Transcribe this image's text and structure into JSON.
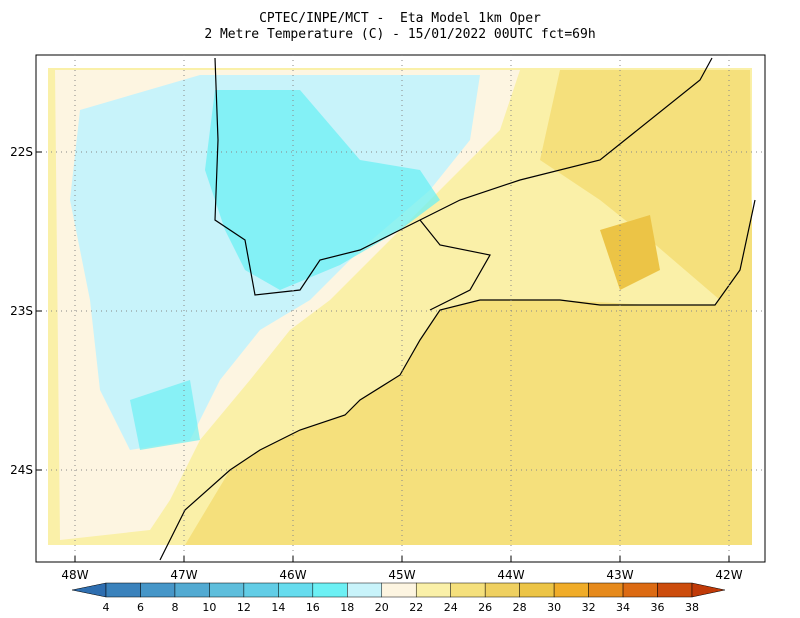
{
  "header": {
    "line1": "CPTEC/INPE/MCT -  Eta Model 1km Oper",
    "line2": "2 Metre Temperature (C) - 15/01/2022 00UTC fct=69h"
  },
  "lat_labels": [
    "22S",
    "23S",
    "24S"
  ],
  "lon_labels": [
    "48W",
    "47W",
    "46W",
    "45W",
    "44W",
    "43W",
    "42W"
  ],
  "colorbar": {
    "levels": [
      4,
      6,
      8,
      10,
      12,
      14,
      16,
      18,
      20,
      22,
      24,
      26,
      28,
      30,
      32,
      34,
      36,
      38
    ],
    "colors": [
      "#2e6eb0",
      "#3a82bc",
      "#4696c8",
      "#52aad2",
      "#5ebedc",
      "#62cde6",
      "#66dcee",
      "#6cf0f4",
      "#c8f3fa",
      "#fdf5e1",
      "#faf0a8",
      "#f5e07c",
      "#efd060",
      "#ecc446",
      "#f0ac28",
      "#e68a1c",
      "#dc6a12",
      "#cc4c0c",
      "#c03a08"
    ]
  }
}
